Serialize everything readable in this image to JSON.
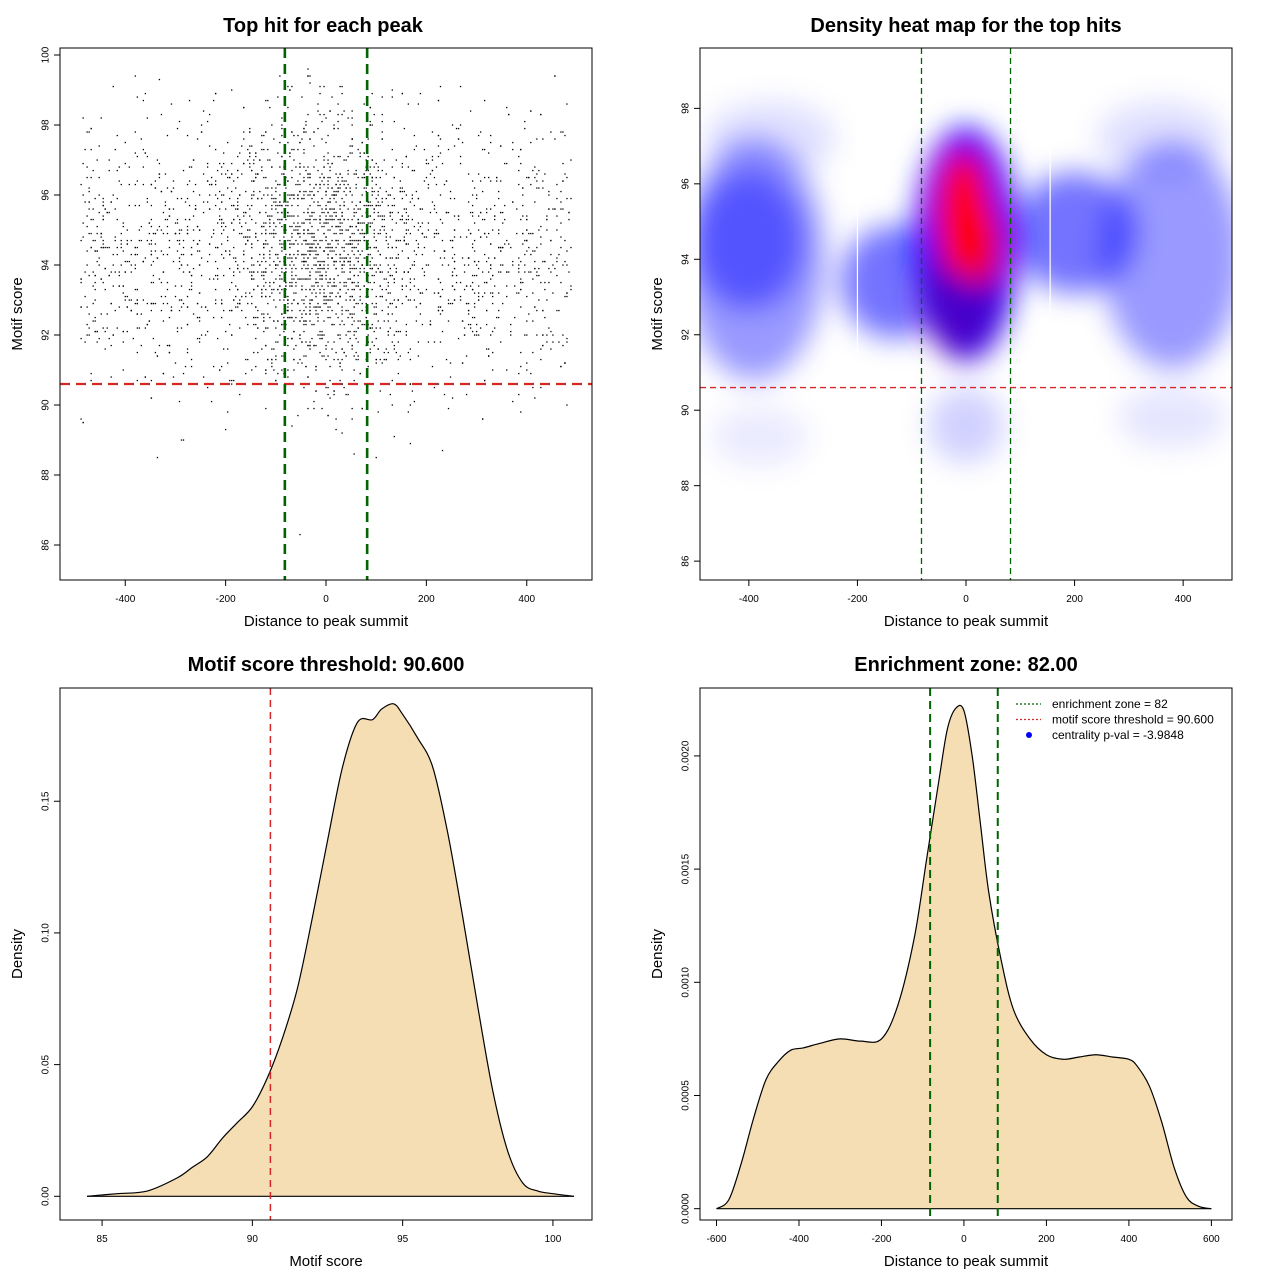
{
  "chart_data": [
    {
      "id": "p1",
      "type": "scatter",
      "title": "Top hit for each peak",
      "xlabel": "Distance to peak summit",
      "ylabel": "Motif score",
      "xlim": [
        -530,
        530
      ],
      "ylim": [
        85,
        100.2
      ],
      "xticks": [
        "-400",
        "-200",
        "0",
        "200",
        "400"
      ],
      "xtick_values": [
        -400,
        -200,
        0,
        200,
        400
      ],
      "yticks": [
        "86",
        "88",
        "90",
        "92",
        "94",
        "96",
        "98",
        "100"
      ],
      "ytick_values": [
        86,
        88,
        90,
        92,
        94,
        96,
        98,
        100
      ],
      "enrichment_zone": 82,
      "threshold": 90.6,
      "colors": {
        "points": "#000000",
        "threshold": "#d62728",
        "zone": "#006400"
      },
      "points": {
        "n": 3200,
        "x_range": [
          -490,
          490
        ],
        "central_sigma": 90,
        "central_fraction": 0.4,
        "y_mean": 94.4,
        "y_sd": 1.9,
        "y_range": [
          85.5,
          99.7
        ]
      }
    },
    {
      "id": "p2",
      "type": "heatmap",
      "title": "Density heat map for the top hits",
      "xlabel": "Distance to peak summit",
      "ylabel": "Motif score",
      "xlim": [
        -490,
        490
      ],
      "ylim": [
        85.5,
        99.6
      ],
      "xticks": [
        "-400",
        "-200",
        "0",
        "200",
        "400"
      ],
      "xtick_values": [
        -400,
        -200,
        0,
        200,
        400
      ],
      "yticks": [
        "86",
        "88",
        "90",
        "92",
        "94",
        "96",
        "98"
      ],
      "ytick_values": [
        86,
        88,
        90,
        92,
        94,
        96,
        98
      ],
      "enrichment_zone": 82,
      "threshold": 90.6,
      "white_lines_x": [
        -200,
        155
      ],
      "colors": {
        "low": "#ffffff",
        "mid": "#0000ff",
        "high": "#ff0000",
        "threshold": "#d62728",
        "zone": "#006400"
      }
    },
    {
      "id": "p3",
      "type": "area",
      "title": "Motif score threshold: 90.600",
      "xlabel": "Motif score",
      "ylabel": "Density",
      "xlim": [
        83.6,
        101.3
      ],
      "ylim": [
        -0.009,
        0.193
      ],
      "xticks": [
        "85",
        "90",
        "95",
        "100"
      ],
      "xtick_values": [
        85,
        90,
        95,
        100
      ],
      "yticks": [
        "0.00",
        "0.05",
        "0.10",
        "0.15"
      ],
      "ytick_values": [
        0,
        0.05,
        0.1,
        0.15
      ],
      "threshold": 90.6,
      "fill": "#f5deb3",
      "threshold_color": "#d62728",
      "x": [
        84.5,
        85.5,
        86.5,
        87.5,
        88.0,
        88.5,
        89.0,
        89.5,
        90.0,
        90.5,
        91.0,
        91.5,
        92.0,
        92.5,
        93.0,
        93.5,
        94.0,
        94.3,
        94.7,
        95.0,
        95.5,
        96.0,
        96.5,
        97.0,
        97.5,
        98.0,
        98.5,
        99.0,
        99.5,
        100.0,
        100.7
      ],
      "y": [
        0.0,
        0.001,
        0.002,
        0.007,
        0.011,
        0.015,
        0.022,
        0.028,
        0.034,
        0.045,
        0.06,
        0.079,
        0.106,
        0.135,
        0.163,
        0.18,
        0.181,
        0.185,
        0.187,
        0.183,
        0.174,
        0.163,
        0.138,
        0.106,
        0.072,
        0.04,
        0.017,
        0.005,
        0.002,
        0.001,
        0.0
      ]
    },
    {
      "id": "p4",
      "type": "area",
      "title": "Enrichment zone: 82.00",
      "xlabel": "Distance to peak summit",
      "ylabel": "Density",
      "xlim": [
        -640,
        650
      ],
      "ylim": [
        -5e-05,
        0.0023
      ],
      "xticks": [
        "-600",
        "-400",
        "-200",
        "0",
        "200",
        "400",
        "600"
      ],
      "xtick_values": [
        -600,
        -400,
        -200,
        0,
        200,
        400,
        600
      ],
      "yticks": [
        "0.0000",
        "0.0005",
        "0.0010",
        "0.0015",
        "0.0020"
      ],
      "ytick_values": [
        0,
        0.0005,
        0.001,
        0.0015,
        0.002
      ],
      "enrichment_zone": 82,
      "fill": "#f5deb3",
      "zone_color": "#006400",
      "x": [
        -600,
        -570,
        -540,
        -510,
        -480,
        -450,
        -420,
        -390,
        -350,
        -300,
        -250,
        -200,
        -160,
        -120,
        -90,
        -60,
        -40,
        -20,
        0,
        20,
        40,
        60,
        90,
        120,
        160,
        200,
        240,
        280,
        320,
        360,
        400,
        420,
        450,
        480,
        510,
        540,
        570,
        600
      ],
      "y": [
        0.0,
        4e-05,
        0.0002,
        0.0004,
        0.00057,
        0.00065,
        0.0007,
        0.00071,
        0.00073,
        0.00075,
        0.00074,
        0.00075,
        0.0009,
        0.0012,
        0.00155,
        0.0019,
        0.00212,
        0.00221,
        0.0022,
        0.002,
        0.0017,
        0.0014,
        0.0011,
        0.00088,
        0.00075,
        0.00068,
        0.00066,
        0.00067,
        0.00068,
        0.00067,
        0.00066,
        0.00063,
        0.00054,
        0.00038,
        0.00018,
        5e-05,
        1e-05,
        0.0
      ],
      "legend": {
        "position": "top-right",
        "entries": [
          {
            "label": "enrichment zone = 82",
            "color": "#006400",
            "style": "dotted"
          },
          {
            "label": "motif score threshold = 90.600",
            "color": "#d62728",
            "style": "dotted"
          },
          {
            "label": "centrality p-val = -3.9848",
            "color": "#0000ff",
            "style": "point"
          }
        ]
      }
    }
  ]
}
